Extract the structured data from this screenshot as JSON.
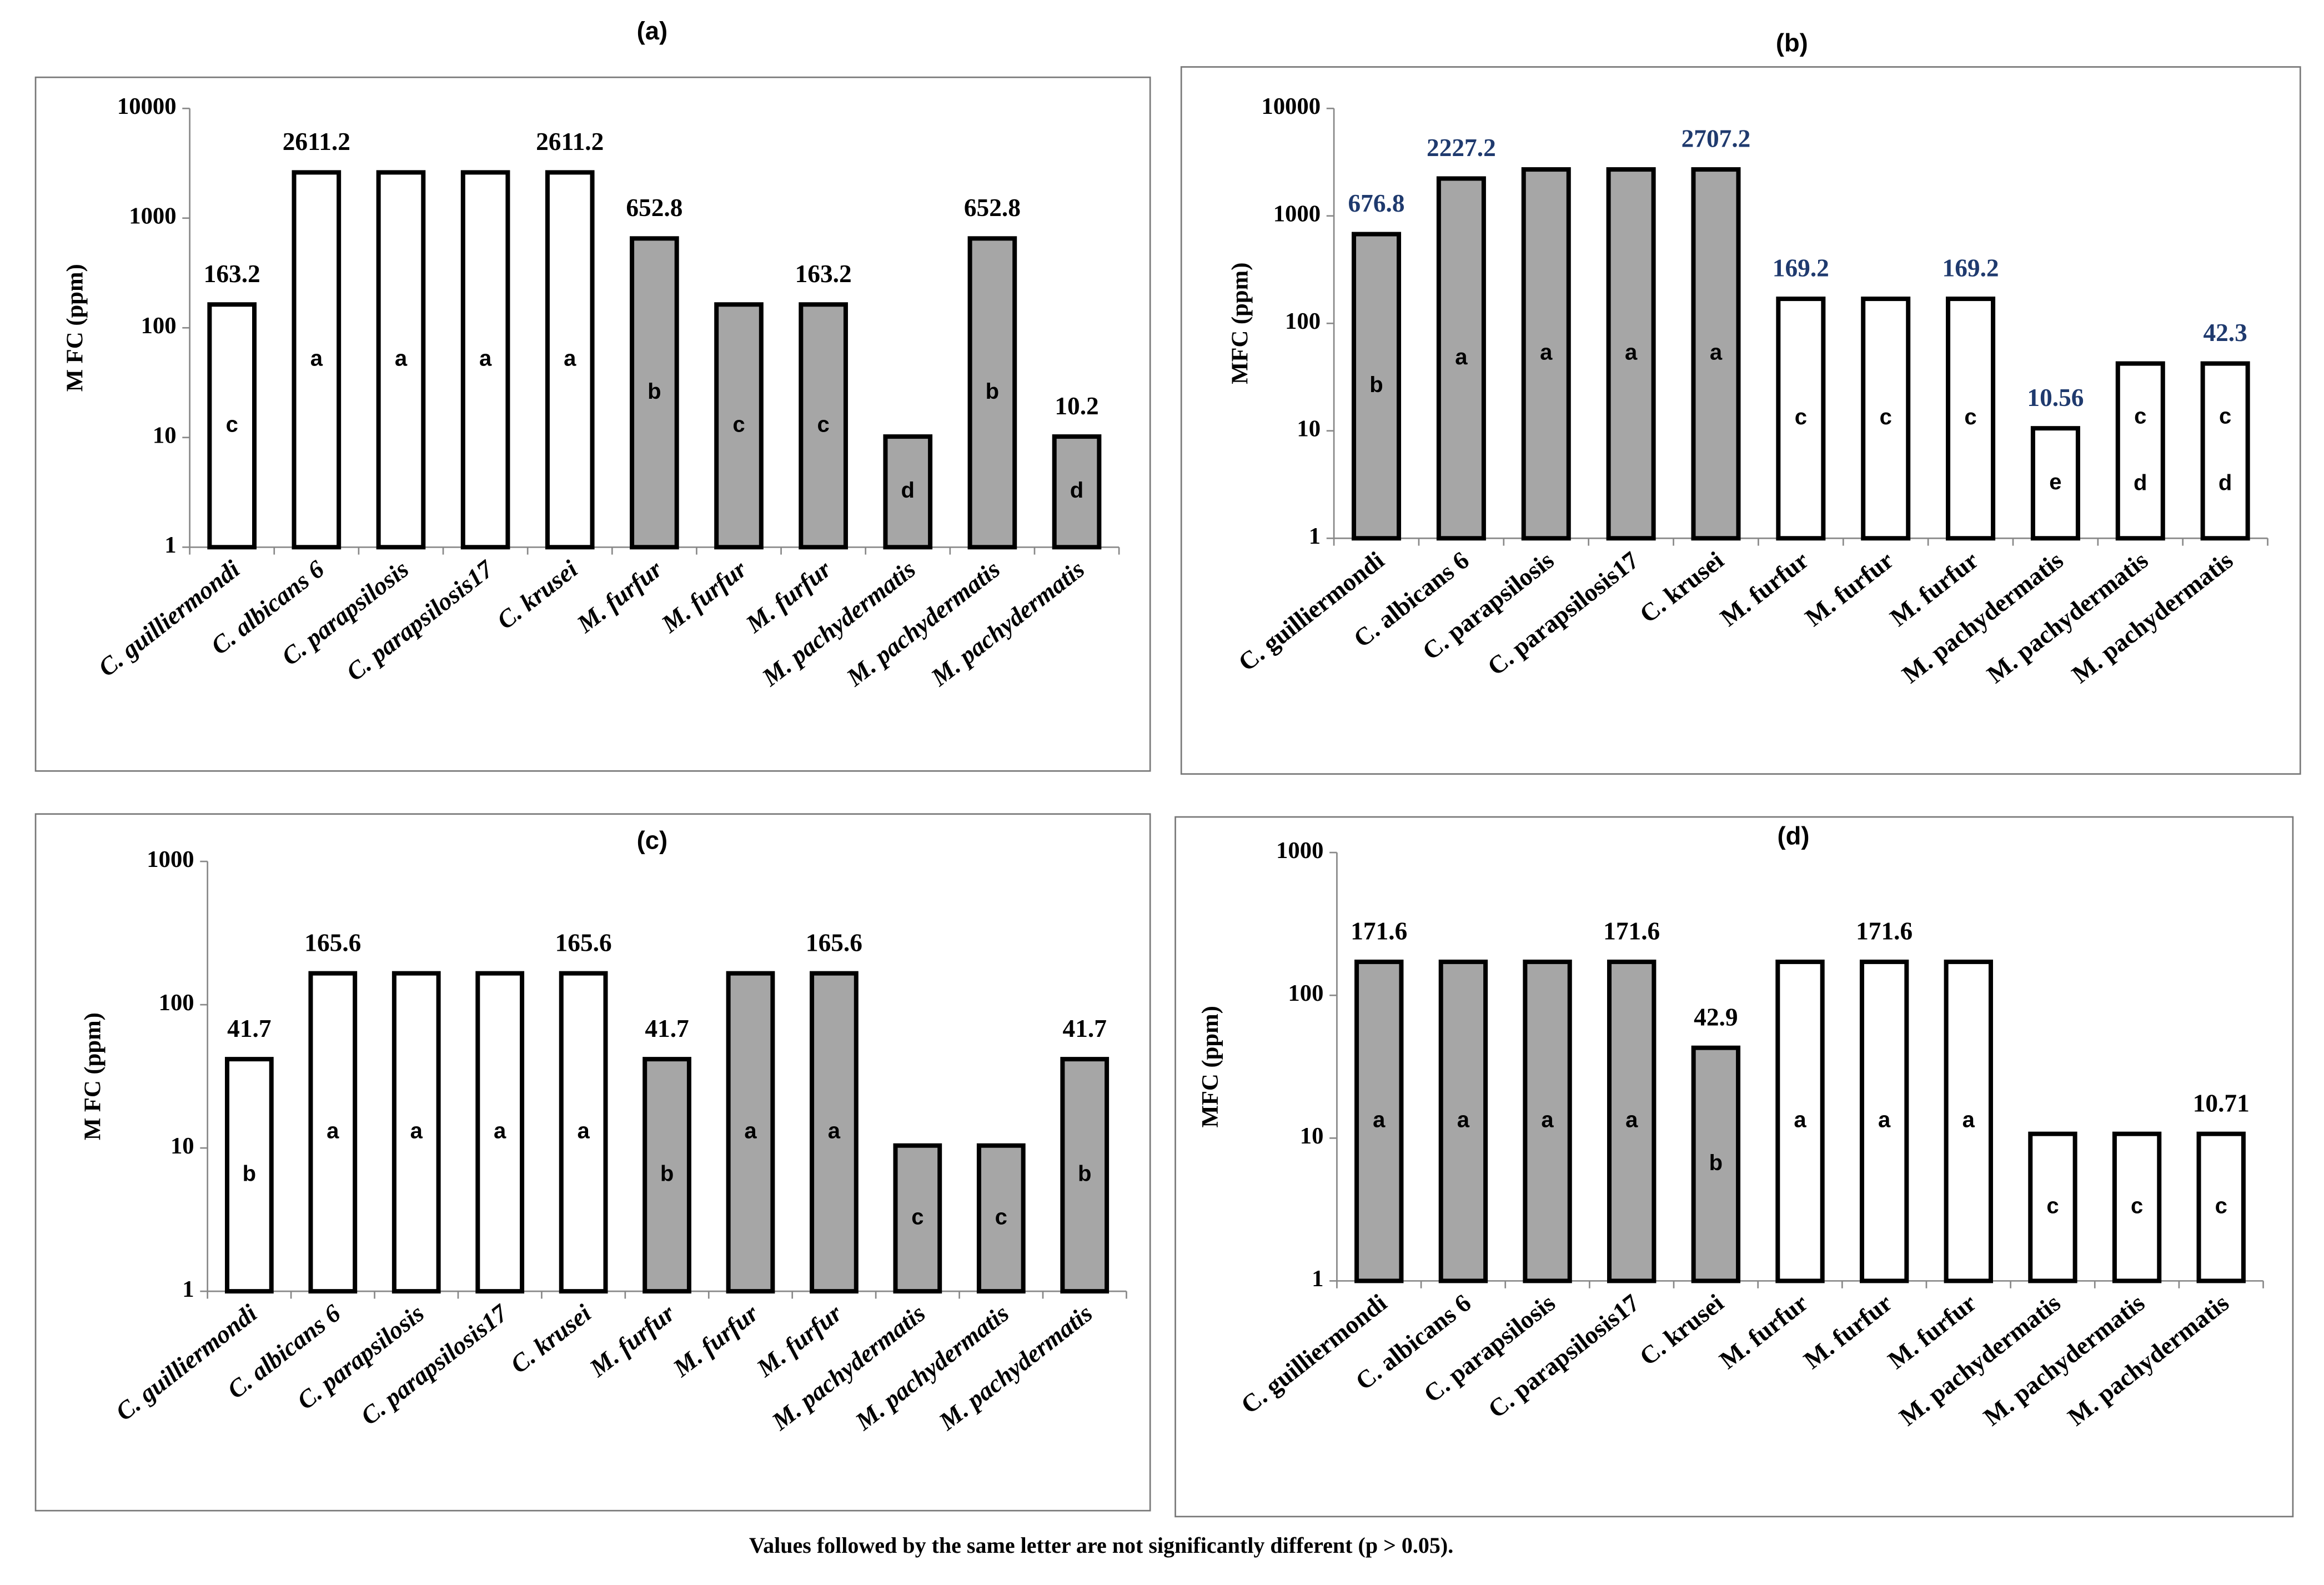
{
  "chart_data": [
    {
      "type": "bar",
      "title": "(a)",
      "y_label": "M FC (ppm)",
      "log_scale": true,
      "categories": [
        "C. guilliermondi",
        "C. albicans 6",
        "C. parapsilosis",
        "C. parapsilosis17",
        "C. krusei",
        "M.  furfur",
        "M.  furfur",
        "M.  furfur",
        "M. pachydermatis",
        "M. pachydermatis",
        "M. pachydermatis"
      ],
      "values": [
        163.2,
        2611.2,
        2611.2,
        2611.2,
        2611.2,
        652.8,
        163.2,
        163.2,
        10.2,
        652.8,
        10.2
      ],
      "value_labels": [
        "163.2",
        "2611.2",
        null,
        null,
        "2611.2",
        "652.8",
        null,
        "163.2",
        null,
        "652.8",
        "10.2"
      ],
      "letters": [
        [
          "c"
        ],
        [
          "a"
        ],
        [
          "a"
        ],
        [
          "a"
        ],
        [
          "a"
        ],
        [
          "b"
        ],
        [
          "c"
        ],
        [
          "c"
        ],
        [
          "d"
        ],
        [
          "b"
        ],
        [
          "d"
        ]
      ],
      "colors": [
        "#ffffff",
        "#ffffff",
        "#ffffff",
        "#ffffff",
        "#ffffff",
        "#a6a6a6",
        "#a6a6a6",
        "#a6a6a6",
        "#a6a6a6",
        "#a6a6a6",
        "#a6a6a6"
      ],
      "label_color": "#000000",
      "italic_categories": true,
      "ylim": [
        1,
        10000
      ],
      "yticks": [
        1,
        10,
        100,
        1000,
        10000
      ]
    },
    {
      "type": "bar",
      "title": "(b)",
      "y_label": "MFC (ppm)",
      "log_scale": true,
      "categories": [
        "C. guilliermondi",
        "C. albicans 6",
        "C. parapsilosis",
        "C. parapsilosis17",
        "C. krusei",
        "M. furfur",
        "M.  furfur",
        "M.  furfur",
        "M. pachydermatis",
        "M. pachydermatis",
        "M. pachydermatis"
      ],
      "values": [
        676.8,
        2227.2,
        2707.2,
        2707.2,
        2707.2,
        169.2,
        169.2,
        169.2,
        10.56,
        42.3,
        42.3
      ],
      "value_labels": [
        "676.8",
        "2227.2",
        null,
        null,
        "2707.2",
        "169.2",
        null,
        "169.2",
        "10.56",
        null,
        "42.3"
      ],
      "letters": [
        [
          "b"
        ],
        [
          "a"
        ],
        [
          "a"
        ],
        [
          "a"
        ],
        [
          "a"
        ],
        [
          "c"
        ],
        [
          "c"
        ],
        [
          "c"
        ],
        [
          "e"
        ],
        [
          "c",
          "d"
        ],
        [
          "c",
          "d"
        ]
      ],
      "colors": [
        "#a6a6a6",
        "#a6a6a6",
        "#a6a6a6",
        "#a6a6a6",
        "#a6a6a6",
        "#ffffff",
        "#ffffff",
        "#ffffff",
        "#ffffff",
        "#ffffff",
        "#ffffff"
      ],
      "label_color": "#1f3a6e",
      "italic_categories": false,
      "ylim": [
        1,
        10000
      ],
      "yticks": [
        1,
        10,
        100,
        1000,
        10000
      ]
    },
    {
      "type": "bar",
      "title": "(c)",
      "y_label": "M FC (ppm)",
      "log_scale": true,
      "categories": [
        "C. guilliermondi",
        "C. albicans 6",
        "C. parapsilosis",
        "C. parapsilosis17",
        "C. krusei",
        "M.  furfur",
        "M.  furfur",
        "M.  furfur",
        "M. pachydermatis",
        "M. pachydermatis",
        "M. pachydermatis"
      ],
      "values": [
        41.7,
        165.6,
        165.6,
        165.6,
        165.6,
        41.7,
        165.6,
        165.6,
        10.4,
        10.4,
        41.7
      ],
      "value_labels": [
        "41.7",
        "165.6",
        null,
        null,
        "165.6",
        "41.7",
        null,
        "165.6",
        null,
        null,
        "41.7"
      ],
      "letters": [
        [
          "b"
        ],
        [
          "a"
        ],
        [
          "a"
        ],
        [
          "a"
        ],
        [
          "a"
        ],
        [
          "b"
        ],
        [
          "a"
        ],
        [
          "a"
        ],
        [
          "c"
        ],
        [
          "c"
        ],
        [
          "b"
        ]
      ],
      "colors": [
        "#ffffff",
        "#ffffff",
        "#ffffff",
        "#ffffff",
        "#ffffff",
        "#a6a6a6",
        "#a6a6a6",
        "#a6a6a6",
        "#a6a6a6",
        "#a6a6a6",
        "#a6a6a6"
      ],
      "label_color": "#000000",
      "italic_categories": true,
      "ylim": [
        1,
        1000
      ],
      "yticks": [
        1,
        10,
        100,
        1000
      ]
    },
    {
      "type": "bar",
      "title": "(d)",
      "y_label": "MFC (ppm)",
      "log_scale": true,
      "categories": [
        "C. guilliermondi",
        "C. albicans 6",
        "C. parapsilosis",
        "C. parapsilosis17",
        "C. krusei",
        "M. furfur",
        "M.  furfur",
        "M.  furfur",
        "M. pachydermatis",
        "M. pachydermatis",
        "M. pachydermatis"
      ],
      "values": [
        171.6,
        171.6,
        171.6,
        171.6,
        42.9,
        171.6,
        171.6,
        171.6,
        10.71,
        10.71,
        10.71
      ],
      "value_labels": [
        "171.6",
        null,
        null,
        "171.6",
        "42.9",
        null,
        "171.6",
        null,
        null,
        null,
        "10.71"
      ],
      "letters": [
        [
          "a"
        ],
        [
          "a"
        ],
        [
          "a"
        ],
        [
          "a"
        ],
        [
          "b"
        ],
        [
          "a"
        ],
        [
          "a"
        ],
        [
          "a"
        ],
        [
          "c"
        ],
        [
          "c"
        ],
        [
          "c"
        ]
      ],
      "colors": [
        "#a6a6a6",
        "#a6a6a6",
        "#a6a6a6",
        "#a6a6a6",
        "#a6a6a6",
        "#ffffff",
        "#ffffff",
        "#ffffff",
        "#ffffff",
        "#ffffff",
        "#ffffff"
      ],
      "label_color": "#000000",
      "italic_categories": false,
      "ylim": [
        1,
        1000
      ],
      "yticks": [
        1,
        10,
        100,
        1000
      ]
    }
  ],
  "footnote": "Values followed by the same letter are not significantly different (p > 0.05)."
}
